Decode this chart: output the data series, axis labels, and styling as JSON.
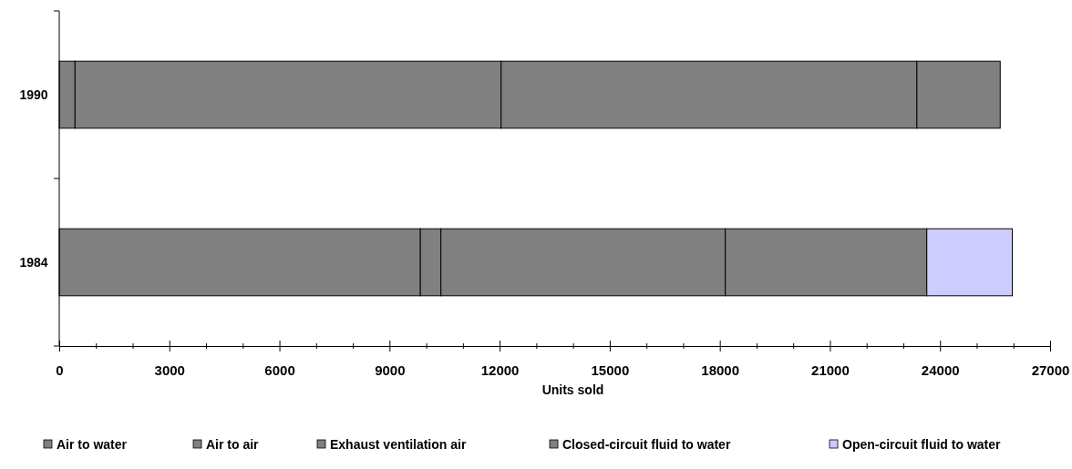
{
  "chart_data": {
    "type": "bar",
    "orientation": "horizontal",
    "stacked": true,
    "xlabel": "Units sold",
    "categories": [
      "1990",
      "1984"
    ],
    "series": [
      {
        "name": "Air to water",
        "color": "#808080",
        "values": [
          430,
          9840
        ]
      },
      {
        "name": "Air to air",
        "color": "#808080",
        "values": [
          11610,
          560
        ]
      },
      {
        "name": "Exhaust ventilation air",
        "color": "#808080",
        "values": [
          11330,
          7750
        ]
      },
      {
        "name": "Closed-circuit fluid to water",
        "color": "#808080",
        "values": [
          2270,
          5490
        ]
      },
      {
        "name": "Open-circuit fluid to water",
        "color": "#ccccff",
        "values": [
          null,
          2330
        ]
      }
    ],
    "xlim": [
      0,
      27000
    ],
    "xticks": [
      0,
      {
        "value": 1000,
        "label": null
      },
      {
        "value": 2000,
        "label": null
      },
      3000,
      {
        "value": 4000,
        "label": null
      },
      {
        "value": 5000,
        "label": null
      },
      6000,
      {
        "value": 7000,
        "label": null
      },
      {
        "value": 8000,
        "label": null
      },
      9000,
      {
        "value": 10000,
        "label": null
      },
      {
        "value": 11000,
        "label": null
      },
      12000,
      {
        "value": 13000,
        "label": null
      },
      {
        "value": 14000,
        "label": null
      },
      15000,
      {
        "value": 16000,
        "label": null
      },
      {
        "value": 17000,
        "label": null
      },
      18000,
      {
        "value": 19000,
        "label": null
      },
      {
        "value": 20000,
        "label": null
      },
      21000,
      {
        "value": 22000,
        "label": null
      },
      {
        "value": 23000,
        "label": null
      },
      24000,
      {
        "value": 25000,
        "label": null
      },
      {
        "value": 26000,
        "label": null
      },
      27000
    ],
    "grid": false,
    "legend": "bottom"
  }
}
